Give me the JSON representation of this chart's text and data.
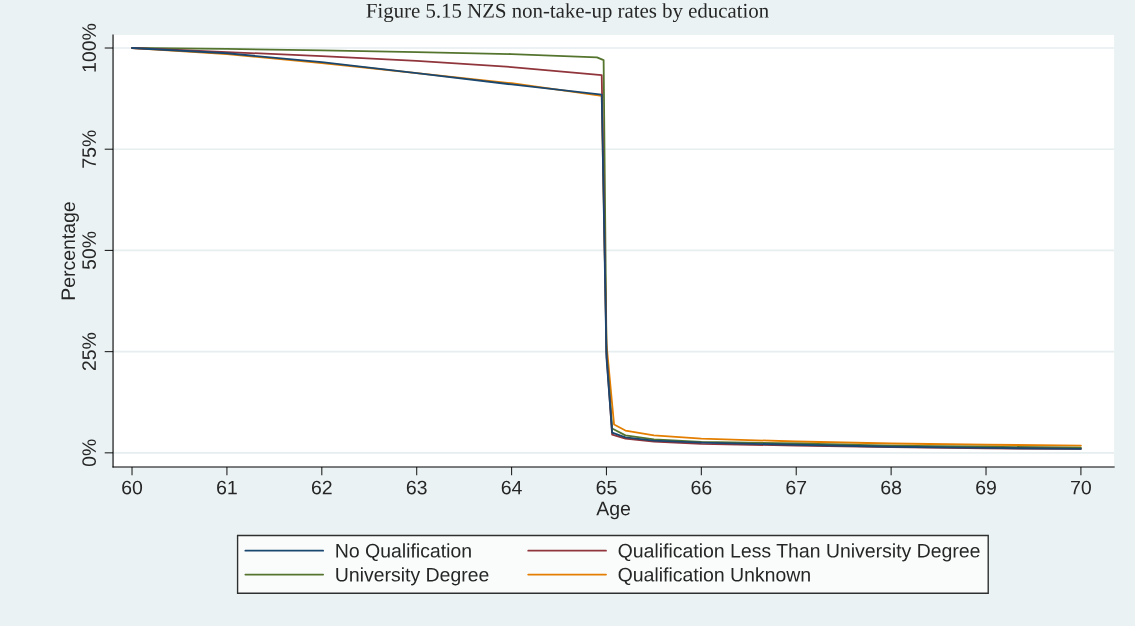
{
  "chart_data": {
    "type": "line",
    "title": "Figure 5.15 NZS non-take-up rates by education",
    "xlabel": "Age",
    "ylabel": "Percentage",
    "xlim": [
      59.8,
      70.35
    ],
    "xticks": [
      60,
      61,
      62,
      63,
      64,
      65,
      66,
      67,
      68,
      69,
      70
    ],
    "ylim": [
      -3.5,
      103.2
    ],
    "yticks": [
      {
        "value": 0,
        "label": "0%"
      },
      {
        "value": 25,
        "label": "25%"
      },
      {
        "value": 50,
        "label": "50%"
      },
      {
        "value": 75,
        "label": "75%"
      },
      {
        "value": 100,
        "label": "100%"
      }
    ],
    "grid": "y",
    "legend": "bottom",
    "line_style": "solid",
    "marker": "none",
    "series": [
      {
        "name": "No Qualification",
        "color": "#1a476f",
        "x": [
          60,
          61,
          62,
          63,
          64,
          64.95,
          65.0,
          65.06,
          65.2,
          65.5,
          66,
          67,
          68,
          69,
          70
        ],
        "values": [
          100,
          98.7,
          96.5,
          93.8,
          91,
          88.5,
          23.5,
          5,
          3.8,
          3,
          2.5,
          2,
          1.5,
          1.2,
          1
        ]
      },
      {
        "name": "Qualification Less Than University Degree",
        "color": "#90353b",
        "x": [
          60,
          61,
          62,
          63,
          64,
          64.95,
          65.0,
          65.06,
          65.2,
          65.5,
          66,
          67,
          68,
          69,
          70
        ],
        "values": [
          100,
          99,
          98,
          96.8,
          95.3,
          93.3,
          24.5,
          4.5,
          3.5,
          2.8,
          2.2,
          1.8,
          1.4,
          1.1,
          1
        ]
      },
      {
        "name": "University Degree",
        "color": "#55752f",
        "x": [
          60,
          61,
          62,
          63,
          64,
          64.9,
          64.97,
          65.0,
          65.06,
          65.2,
          65.5,
          66,
          67,
          68,
          69,
          70
        ],
        "values": [
          100,
          99.8,
          99.4,
          99,
          98.5,
          97.7,
          97,
          25.5,
          6,
          4.3,
          3.3,
          2.7,
          2.3,
          1.8,
          1.5,
          1.3
        ]
      },
      {
        "name": "Qualification Unknown",
        "color": "#e37e00",
        "x": [
          60,
          61,
          62,
          63,
          64,
          64.95,
          65.0,
          65.08,
          65.2,
          65.5,
          66,
          67,
          68,
          69,
          70
        ],
        "values": [
          100,
          98.5,
          96.3,
          93.8,
          91.3,
          88.2,
          27,
          7,
          5.5,
          4.3,
          3.5,
          2.8,
          2.3,
          2,
          1.8
        ]
      }
    ]
  }
}
